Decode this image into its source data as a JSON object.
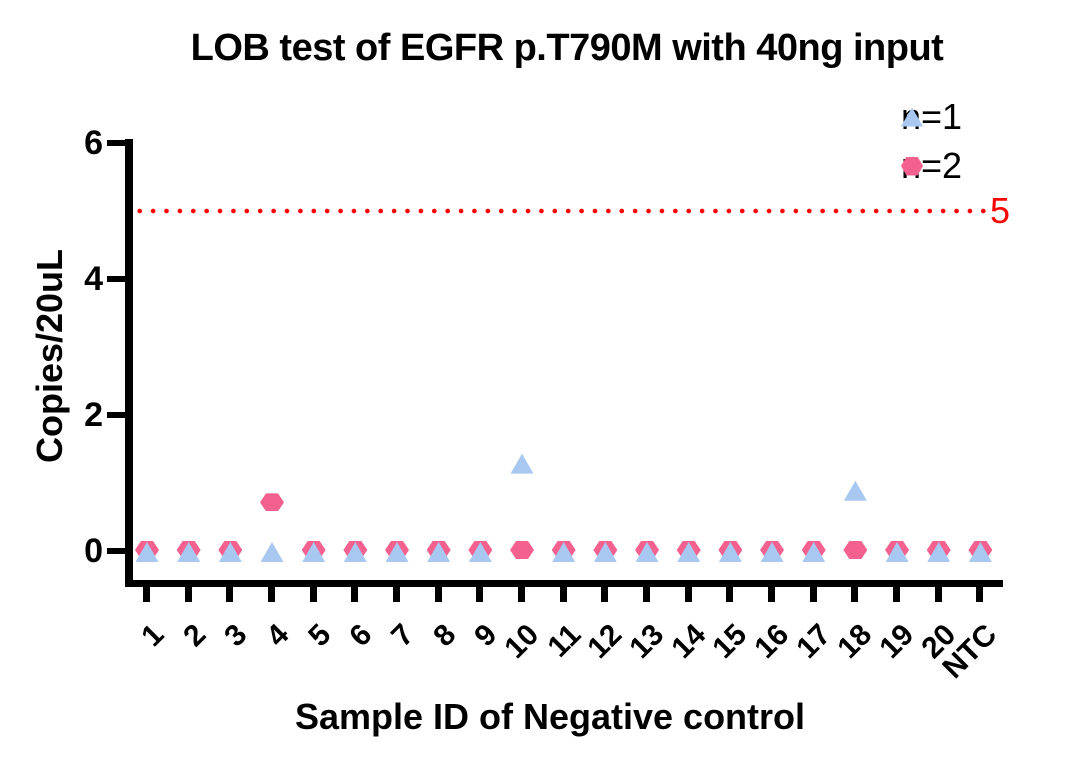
{
  "page": {
    "background": "#FFFFFF"
  },
  "chart_data": {
    "type": "scatter",
    "title": "LOB test of EGFR p.T790M with 40ng input",
    "xlabel": "Sample ID of Negative control",
    "ylabel": "Copies/20uL",
    "categories": [
      "1",
      "2",
      "3",
      "4",
      "5",
      "6",
      "7",
      "8",
      "9",
      "10",
      "11",
      "12",
      "13",
      "14",
      "15",
      "16",
      "17",
      "18",
      "19",
      "20",
      "NTC"
    ],
    "yticks": [
      "0",
      "2",
      "4",
      "6"
    ],
    "ylim": [
      0,
      6
    ],
    "grid": false,
    "axis_color": "#000000",
    "series": [
      {
        "name": "n=1",
        "marker": "triangle",
        "color": "#A8C8F2",
        "values": [
          0,
          0,
          0,
          0,
          0,
          0,
          0,
          0,
          0,
          1.3,
          0,
          0,
          0,
          0,
          0,
          0,
          0,
          0.9,
          0,
          0,
          0
        ]
      },
      {
        "name": "n=2",
        "marker": "hexagon",
        "color": "#F4618F",
        "values": [
          0,
          0,
          0,
          0.7,
          0,
          0,
          0,
          0,
          0,
          0,
          0,
          0,
          0,
          0,
          0,
          0,
          0,
          0,
          0,
          0,
          0
        ]
      }
    ],
    "threshold_line": {
      "value": 5,
      "label": "5",
      "color": "#FF0000",
      "style": "dotted"
    },
    "legend": [
      {
        "label": "n=1",
        "marker": "triangle",
        "color": "#A8C8F2"
      },
      {
        "label": "n=2",
        "marker": "hexagon",
        "color": "#F4618F"
      }
    ],
    "legend_position": "top-right"
  }
}
